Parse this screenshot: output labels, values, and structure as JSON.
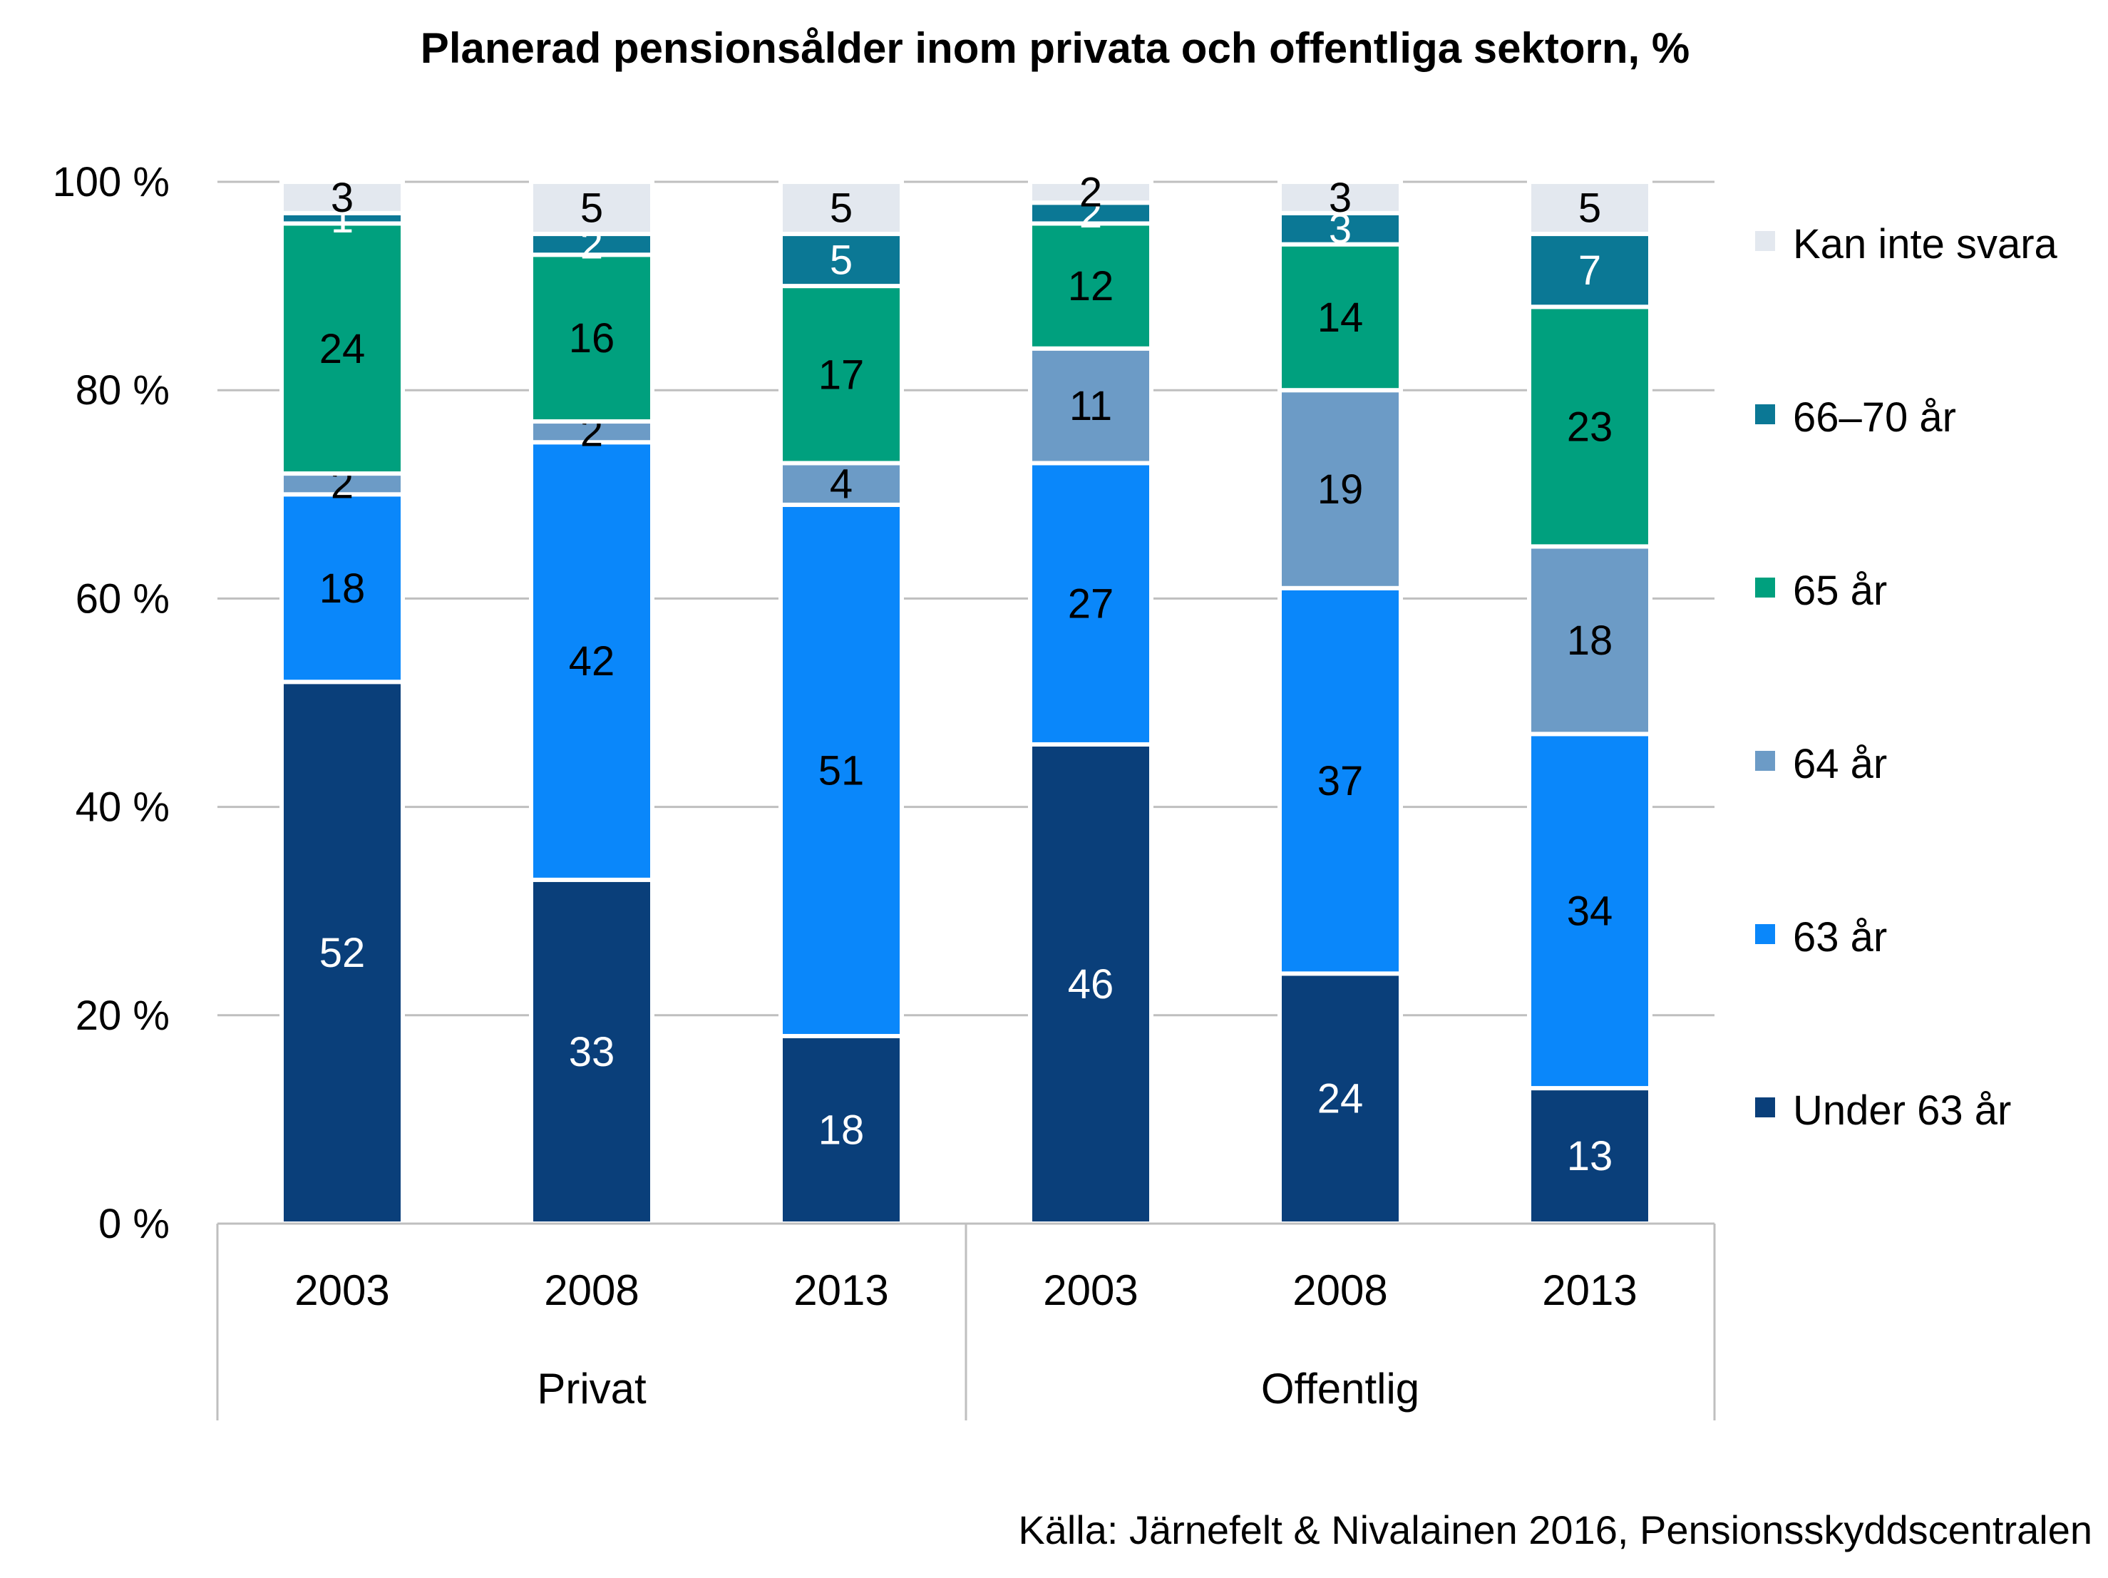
{
  "chart_data": {
    "type": "bar",
    "stacked": true,
    "title": "Planerad pensionsålder inom privata och offentliga sektorn, %",
    "source": "Källa: Järnefelt & Nivalainen 2016, Pensionsskyddscentralen",
    "y_ticks": [
      "0 %",
      "20 %",
      "40 %",
      "60 %",
      "80 %",
      "100 %"
    ],
    "ylim": [
      0,
      100
    ],
    "grid": true,
    "legend_position": "right",
    "groups": [
      {
        "label": "Privat",
        "categories": [
          "2003",
          "2008",
          "2013"
        ]
      },
      {
        "label": "Offentlig",
        "categories": [
          "2003",
          "2008",
          "2013"
        ]
      }
    ],
    "series": [
      {
        "name": "Under 63 år",
        "color": "#0a3f7a",
        "label_color": "#ffffff",
        "values": [
          52,
          33,
          18,
          46,
          24,
          13
        ]
      },
      {
        "name": "63 år",
        "color": "#0a87fa",
        "label_color": "#000000",
        "values": [
          18,
          42,
          51,
          27,
          37,
          34
        ]
      },
      {
        "name": "64 år",
        "color": "#6c9bc6",
        "label_color": "#000000",
        "values": [
          2,
          2,
          4,
          11,
          19,
          18
        ]
      },
      {
        "name": "65 år",
        "color": "#00a07e",
        "label_color": "#000000",
        "values": [
          24,
          16,
          17,
          12,
          14,
          23
        ]
      },
      {
        "name": "66–70 år",
        "color": "#0b7895",
        "label_color": "#ffffff",
        "values": [
          1,
          2,
          5,
          2,
          3,
          7
        ]
      },
      {
        "name": "Kan inte svara",
        "color": "#e3e8ef",
        "label_color": "#000000",
        "values": [
          3,
          5,
          5,
          2,
          3,
          5
        ]
      }
    ]
  }
}
